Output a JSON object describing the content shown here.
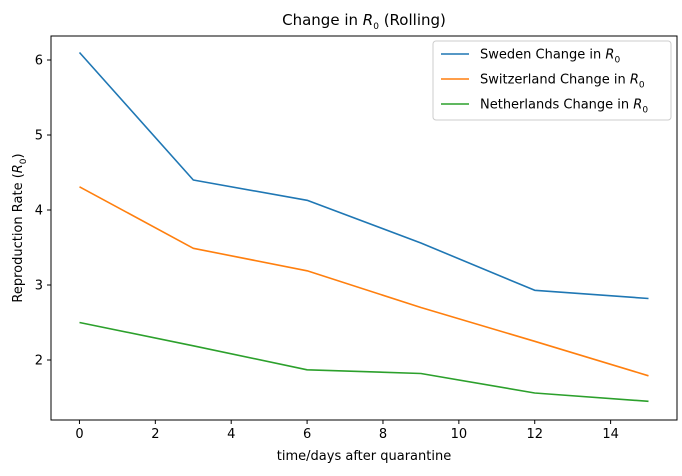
{
  "chart_data": {
    "type": "line",
    "title": "Change in R0 (Rolling)",
    "title_parts": {
      "pre": "Change in ",
      "var": "R",
      "sub": "0",
      "post": " (Rolling)"
    },
    "xlabel": "time/days after quarantine",
    "ylabel": "Reproduction Rate (R0)",
    "ylabel_parts": {
      "pre": "Reproduction Rate (",
      "var": "R",
      "sub": "0",
      "post": ")"
    },
    "x": [
      0,
      3,
      6,
      9,
      12,
      15
    ],
    "xlim": [
      -0.75,
      15.75
    ],
    "ylim": [
      1.2,
      6.32
    ],
    "xticks": [
      0,
      2,
      4,
      6,
      8,
      10,
      12,
      14
    ],
    "yticks": [
      2,
      3,
      4,
      5,
      6
    ],
    "grid": false,
    "legend_position": "top-right",
    "series": [
      {
        "name": "Sweden Change in R0",
        "label_pre": "Sweden Change in ",
        "color": "#1f77b4",
        "values": [
          6.1,
          4.4,
          4.13,
          3.56,
          2.93,
          2.82
        ]
      },
      {
        "name": "Switzerland Change in R0",
        "label_pre": "Switzerland Change in ",
        "color": "#ff7f0e",
        "values": [
          4.31,
          3.49,
          3.19,
          2.7,
          2.25,
          1.79
        ]
      },
      {
        "name": "Netherlands Change in R0",
        "label_pre": "Netherlands Change in ",
        "color": "#2ca02c",
        "values": [
          2.5,
          2.19,
          1.87,
          1.82,
          1.56,
          1.45
        ]
      }
    ]
  }
}
